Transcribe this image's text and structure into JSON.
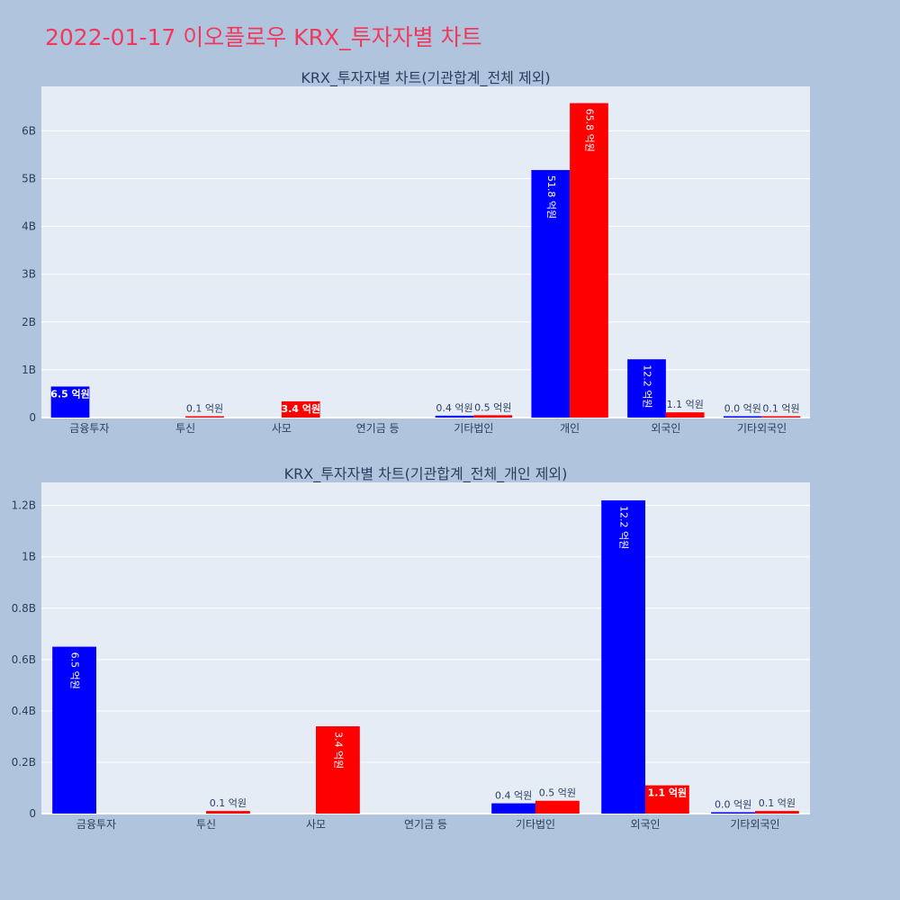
{
  "page": {
    "title": "2022-01-17 이오플로우 KRX_투자자별 차트",
    "title_color": "#ef3a5d",
    "background": "#b0c4de"
  },
  "colors": {
    "plot_bg": "#e5ecf6",
    "buy": "#0000ff",
    "sell": "#ff0000",
    "grid": "#ffffff",
    "text": "#2a3f5f"
  },
  "chart_data": [
    {
      "type": "bar",
      "title": "KRX_투자자별 차트(기관합계_전체 제외)",
      "categories": [
        "금융투자",
        "투신",
        "사모",
        "연기금 등",
        "기타법인",
        "개인",
        "외국인",
        "기타외국인"
      ],
      "series": [
        {
          "values": [
            0.65,
            null,
            null,
            null,
            0.04,
            5.18,
            1.22,
            0.0
          ],
          "labels": [
            "6.5 억원",
            "",
            "",
            "",
            "0.4 억원",
            "51.8 억원",
            "12.2 억원",
            "0.0 억원"
          ]
        },
        {
          "values": [
            null,
            0.01,
            0.34,
            null,
            0.05,
            6.58,
            0.11,
            0.01
          ],
          "labels": [
            "",
            "0.1 억원",
            "3.4 억원",
            "",
            "0.5 억원",
            "65.8 억원",
            "1.1 억원",
            "0.1 억원"
          ]
        }
      ],
      "yticks": [
        "0",
        "1B",
        "2B",
        "3B",
        "4B",
        "5B",
        "6B"
      ],
      "yunit": 1,
      "ylim": [
        0,
        6.93
      ],
      "xlabel": "",
      "ylabel": "",
      "grid": true
    },
    {
      "type": "bar",
      "title": "KRX_투자자별 차트(기관합계_전체_개인 제외)",
      "categories": [
        "금융투자",
        "투신",
        "사모",
        "연기금 등",
        "기타법인",
        "외국인",
        "기타외국인"
      ],
      "series": [
        {
          "values": [
            0.65,
            null,
            null,
            null,
            0.04,
            1.22,
            0.0
          ],
          "labels": [
            "6.5 억원",
            "",
            "",
            "",
            "0.4 억원",
            "12.2 억원",
            "0.0 억원"
          ]
        },
        {
          "values": [
            null,
            0.01,
            0.34,
            null,
            0.05,
            0.11,
            0.01
          ],
          "labels": [
            "",
            "0.1 억원",
            "3.4 억원",
            "",
            "0.5 억원",
            "1.1 억원",
            "0.1 억원"
          ]
        }
      ],
      "yticks": [
        "0",
        "0.2B",
        "0.4B",
        "0.6B",
        "0.8B",
        "1B",
        "1.2B"
      ],
      "yunit": 0.2,
      "ylim": [
        0,
        1.29
      ],
      "xlabel": "",
      "ylabel": "",
      "grid": true
    }
  ]
}
